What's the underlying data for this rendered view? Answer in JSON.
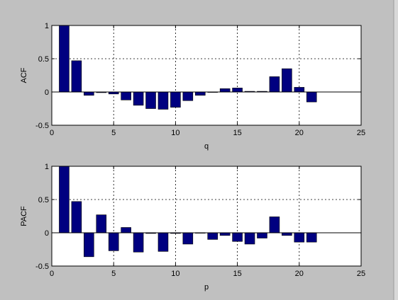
{
  "figure": {
    "background_color": "#c0c0c0",
    "axes_background_color": "#ffffff",
    "bar_fill_color": "#000080",
    "bar_edge_color": "#000000"
  },
  "chart_data": [
    {
      "type": "bar",
      "title": "",
      "xlabel": "q",
      "ylabel": "ACF",
      "xlim": [
        0,
        25
      ],
      "ylim": [
        -0.5,
        1
      ],
      "xticks": [
        0,
        5,
        10,
        15,
        20,
        25
      ],
      "xtick_labels": [
        "0",
        "5",
        "10",
        "15",
        "20",
        "25"
      ],
      "yticks": [
        -0.5,
        0,
        0.5,
        1
      ],
      "ytick_labels": [
        "-0.5",
        "0",
        "0.5",
        "1"
      ],
      "grid": true,
      "bar_width": 0.8,
      "x": [
        1,
        2,
        3,
        4,
        5,
        6,
        7,
        8,
        9,
        10,
        11,
        12,
        13,
        14,
        15,
        16,
        17,
        18,
        19,
        20,
        21
      ],
      "values": [
        1.0,
        0.47,
        -0.05,
        -0.01,
        -0.03,
        -0.12,
        -0.2,
        -0.25,
        -0.26,
        -0.23,
        -0.13,
        -0.05,
        0.0,
        0.05,
        0.06,
        0.01,
        0.01,
        0.23,
        0.35,
        0.07,
        -0.15
      ]
    },
    {
      "type": "bar",
      "title": "",
      "xlabel": "p",
      "ylabel": "PACF",
      "xlim": [
        0,
        25
      ],
      "ylim": [
        -0.5,
        1
      ],
      "xticks": [
        0,
        5,
        10,
        15,
        20,
        25
      ],
      "xtick_labels": [
        "0",
        "5",
        "10",
        "15",
        "20",
        "25"
      ],
      "yticks": [
        -0.5,
        0,
        0.5,
        1
      ],
      "ytick_labels": [
        "-0.5",
        "0",
        "0.5",
        "1"
      ],
      "grid": true,
      "bar_width": 0.8,
      "x": [
        1,
        2,
        3,
        4,
        5,
        6,
        7,
        8,
        9,
        10,
        11,
        12,
        13,
        14,
        15,
        16,
        17,
        18,
        19,
        20,
        21
      ],
      "values": [
        1.0,
        0.47,
        -0.36,
        0.27,
        -0.27,
        0.08,
        -0.29,
        -0.01,
        -0.28,
        -0.01,
        -0.17,
        0.0,
        -0.1,
        -0.04,
        -0.13,
        -0.17,
        -0.08,
        0.24,
        -0.04,
        -0.14,
        -0.14
      ]
    }
  ]
}
